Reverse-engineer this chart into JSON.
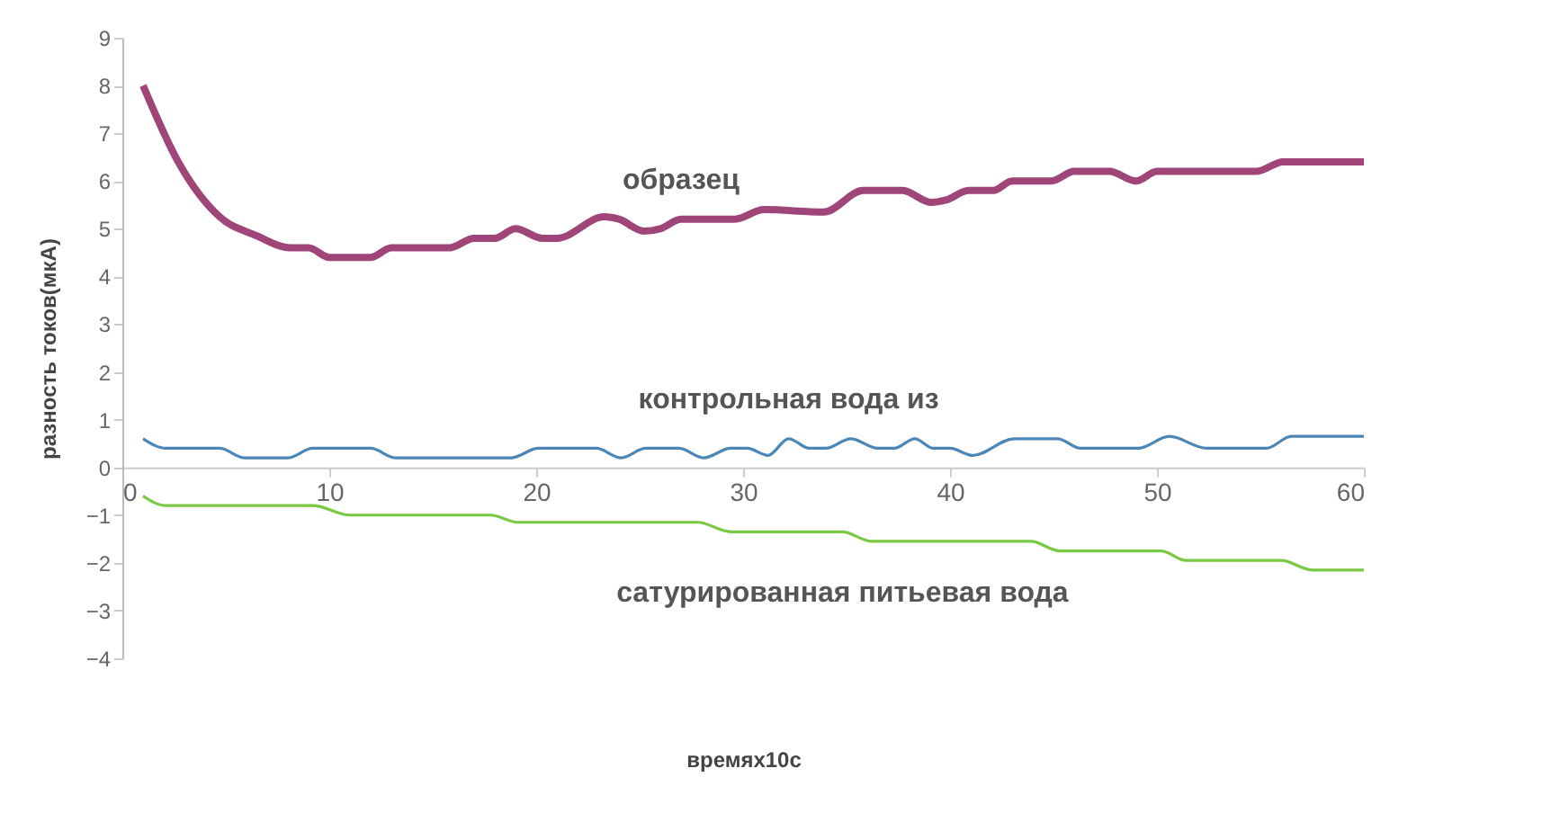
{
  "chart_data": {
    "type": "line",
    "xlabel": "времяx10с",
    "ylabel": "разность токов(мкА)",
    "xlim": [
      0,
      60
    ],
    "xticks": [
      0,
      10,
      20,
      30,
      40,
      50,
      60
    ],
    "ylim": [
      -4,
      9
    ],
    "yticks": [
      -4,
      -3,
      -2,
      -1,
      0,
      1,
      2,
      3,
      4,
      5,
      6,
      7,
      8,
      9
    ],
    "grid": false,
    "legend": false,
    "marker": "none",
    "line_style": "solid",
    "series": [
      {
        "name": "образец",
        "color": "#a0457a",
        "x": [
          1,
          2.7,
          4.7,
          6.5,
          8.1,
          9,
          10,
          12,
          13,
          15.8,
          17,
          18,
          19,
          20.3,
          21,
          23.3,
          24,
          25.2,
          26,
          27,
          29.6,
          31,
          33.9,
          35.8,
          37.7,
          39.1,
          39.8,
          40.9,
          42.1,
          43,
          44.9,
          46,
          47.7,
          49,
          50,
          54.8,
          56.1,
          60
        ],
        "values": [
          8.0,
          6.4,
          5.25,
          4.85,
          4.6,
          4.6,
          4.4,
          4.4,
          4.6,
          4.6,
          4.8,
          4.8,
          5.0,
          4.8,
          4.8,
          5.25,
          5.2,
          4.95,
          5.0,
          5.2,
          5.2,
          5.4,
          5.35,
          5.8,
          5.8,
          5.55,
          5.6,
          5.8,
          5.8,
          6.0,
          6.0,
          6.2,
          6.2,
          6.0,
          6.2,
          6.2,
          6.4,
          6.4
        ]
      },
      {
        "name": "контрольная вода из",
        "color": "#4a86b8",
        "x": [
          1,
          2.1,
          4.7,
          5.9,
          8,
          9.2,
          12,
          13.2,
          18.8,
          20.1,
          22.9,
          24.1,
          25.3,
          26.9,
          28.1,
          29.4,
          30.2,
          31.2,
          32.2,
          33.2,
          34,
          35.2,
          36.5,
          37.3,
          38.3,
          39.2,
          40,
          41.1,
          43.1,
          45.2,
          46.3,
          49.1,
          50.6,
          52.4,
          55.3,
          56.5,
          60
        ],
        "values": [
          0.6,
          0.4,
          0.4,
          0.2,
          0.2,
          0.4,
          0.4,
          0.2,
          0.2,
          0.4,
          0.4,
          0.2,
          0.4,
          0.4,
          0.2,
          0.4,
          0.4,
          0.25,
          0.6,
          0.4,
          0.4,
          0.6,
          0.4,
          0.4,
          0.6,
          0.4,
          0.4,
          0.25,
          0.6,
          0.6,
          0.4,
          0.4,
          0.65,
          0.4,
          0.4,
          0.65,
          0.65
        ]
      },
      {
        "name": "сатурированная  питьевая вода",
        "color": "#7ac943",
        "x": [
          1,
          2.1,
          9.2,
          11,
          17.8,
          19.1,
          27.8,
          29.4,
          34.8,
          36.2,
          43.9,
          45.3,
          50.2,
          51.4,
          56,
          57.5,
          60
        ],
        "values": [
          -0.6,
          -0.8,
          -0.8,
          -1.0,
          -1.0,
          -1.15,
          -1.15,
          -1.35,
          -1.35,
          -1.55,
          -1.55,
          -1.75,
          -1.75,
          -1.95,
          -1.95,
          -2.15,
          -2.15
        ]
      }
    ]
  }
}
